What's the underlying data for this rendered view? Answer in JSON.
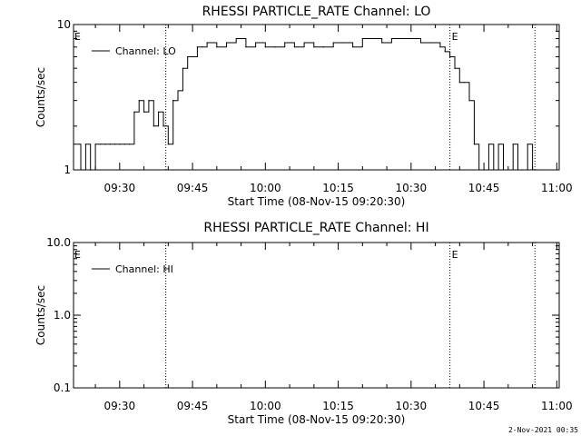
{
  "footer": {
    "timestamp": "2-Nov-2021 00:35"
  },
  "chart_data": [
    {
      "type": "line",
      "title": "RHESSI PARTICLE_RATE Channel: LO",
      "xlabel": "Start Time (08-Nov-15 09:20:30)",
      "ylabel": "Counts/sec",
      "yscale": "log",
      "ylim": [
        1,
        10
      ],
      "yticks": [
        "1",
        "10"
      ],
      "xlim": [
        "09:20:30",
        "11:00:30"
      ],
      "xticks": [
        "09:30",
        "09:45",
        "10:00",
        "10:15",
        "10:30",
        "10:45",
        "11:00"
      ],
      "legend": {
        "placement": "top-left"
      },
      "grid": false,
      "markers": [
        {
          "time": "09:39:30",
          "label": ""
        },
        {
          "time": "10:38:00",
          "label": "E"
        },
        {
          "time": "10:55:30",
          "label": ""
        }
      ],
      "edge_label": "E",
      "series": [
        {
          "name": "Channel: LO",
          "x": [
            "09:20:30",
            "09:22:00",
            "09:23:00",
            "09:24:00",
            "09:25:00",
            "09:26:00",
            "09:27:00",
            "09:28:00",
            "09:29:00",
            "09:30:00",
            "09:31:00",
            "09:32:00",
            "09:33:00",
            "09:34:00",
            "09:35:00",
            "09:36:00",
            "09:37:00",
            "09:38:00",
            "09:39:00",
            "09:40:00",
            "09:41:00",
            "09:42:00",
            "09:43:00",
            "09:44:00",
            "09:45:00",
            "09:46:00",
            "09:47:00",
            "09:48:00",
            "09:50:00",
            "09:52:00",
            "09:54:00",
            "09:56:00",
            "09:58:00",
            "10:00:00",
            "10:02:00",
            "10:04:00",
            "10:06:00",
            "10:08:00",
            "10:10:00",
            "10:12:00",
            "10:14:00",
            "10:16:00",
            "10:18:00",
            "10:20:00",
            "10:22:00",
            "10:24:00",
            "10:26:00",
            "10:28:00",
            "10:30:00",
            "10:32:00",
            "10:34:00",
            "10:36:00",
            "10:37:00",
            "10:38:00",
            "10:39:00",
            "10:40:00",
            "10:41:00",
            "10:42:00",
            "10:43:00",
            "10:44:00",
            "10:45:00",
            "10:46:00",
            "10:47:00",
            "10:48:00",
            "10:49:00",
            "10:50:00",
            "10:51:00",
            "10:52:00",
            "10:53:00",
            "10:54:00",
            "10:55:00",
            "10:56:00"
          ],
          "y": [
            1.5,
            1,
            1.5,
            1,
            1.5,
            1.5,
            1.5,
            1.5,
            1.5,
            1.5,
            1.5,
            1.5,
            2.5,
            3,
            2.5,
            3,
            2,
            2.5,
            2,
            1.5,
            3,
            3.5,
            5,
            6,
            6,
            7,
            7,
            7.5,
            7,
            7.5,
            8,
            7,
            7.5,
            7,
            7,
            7.5,
            7,
            7.5,
            7,
            7,
            7.5,
            7.5,
            7,
            8,
            8,
            7.5,
            8,
            8,
            8,
            7.5,
            7.5,
            7,
            6.5,
            6,
            5,
            4,
            4,
            3,
            1.5,
            1,
            1,
            1.5,
            1,
            1.5,
            1,
            1,
            1.5,
            1,
            1,
            1.5,
            1,
            1
          ]
        }
      ]
    },
    {
      "type": "line",
      "title": "RHESSI PARTICLE_RATE Channel: HI",
      "xlabel": "Start Time (08-Nov-15 09:20:30)",
      "ylabel": "Counts/sec",
      "yscale": "log",
      "ylim": [
        0.1,
        10
      ],
      "yticks": [
        "0.1",
        "1.0",
        "10.0"
      ],
      "xlim": [
        "09:20:30",
        "11:00:30"
      ],
      "xticks": [
        "09:30",
        "09:45",
        "10:00",
        "10:15",
        "10:30",
        "10:45",
        "11:00"
      ],
      "legend": {
        "placement": "top-left"
      },
      "grid": false,
      "markers": [
        {
          "time": "09:39:30",
          "label": ""
        },
        {
          "time": "10:38:00",
          "label": "E"
        },
        {
          "time": "10:55:30",
          "label": ""
        }
      ],
      "edge_label": "E",
      "series": [
        {
          "name": "Channel: HI",
          "x": [],
          "y": []
        }
      ]
    }
  ]
}
